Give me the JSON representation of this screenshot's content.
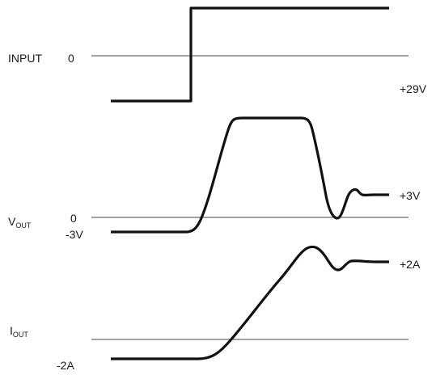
{
  "colors": {
    "waveform": "#111111",
    "baseline": "#444444",
    "text": "#1a1a1a",
    "background": "#ffffff"
  },
  "labels": {
    "input": "INPUT",
    "input_zero": "0",
    "plus_29v": "+29V",
    "vout_main": "V",
    "vout_sub": "OUT",
    "vout_zero": "0",
    "minus_3v": "-3V",
    "plus_3v": "+3V",
    "plus_2a": "+2A",
    "iout_main": "I",
    "iout_sub": "OUT",
    "minus_2a": "-2A"
  }
}
